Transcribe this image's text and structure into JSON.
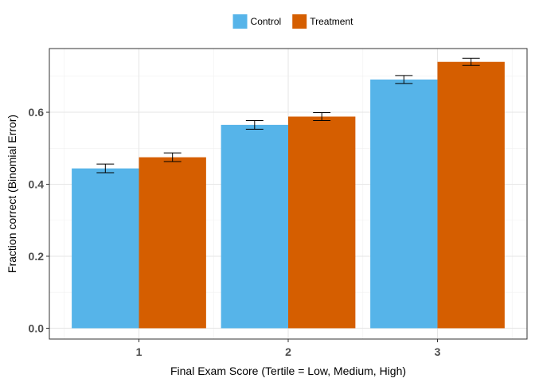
{
  "chart_data": {
    "type": "bar",
    "title": "",
    "xlabel": "Final Exam Score (Tertile = Low, Medium, High)",
    "ylabel": "Fraction correct (Binomial Error)",
    "categories": [
      "1",
      "2",
      "3"
    ],
    "series": [
      {
        "name": "Control",
        "color": "#56b4e9",
        "values": [
          0.444,
          0.565,
          0.691
        ],
        "error_low": [
          0.432,
          0.553,
          0.68
        ],
        "error_high": [
          0.456,
          0.577,
          0.702
        ]
      },
      {
        "name": "Treatment",
        "color": "#d55e00",
        "values": [
          0.475,
          0.588,
          0.74
        ],
        "error_low": [
          0.463,
          0.577,
          0.73
        ],
        "error_high": [
          0.487,
          0.599,
          0.75
        ]
      }
    ],
    "ylim": [
      -0.03,
      0.777
    ],
    "yticks": [
      0.0,
      0.2,
      0.4,
      0.6
    ],
    "ytick_labels": [
      "0.0",
      "0.2",
      "0.4",
      "0.6"
    ],
    "grid": true,
    "legend_position": "top"
  }
}
